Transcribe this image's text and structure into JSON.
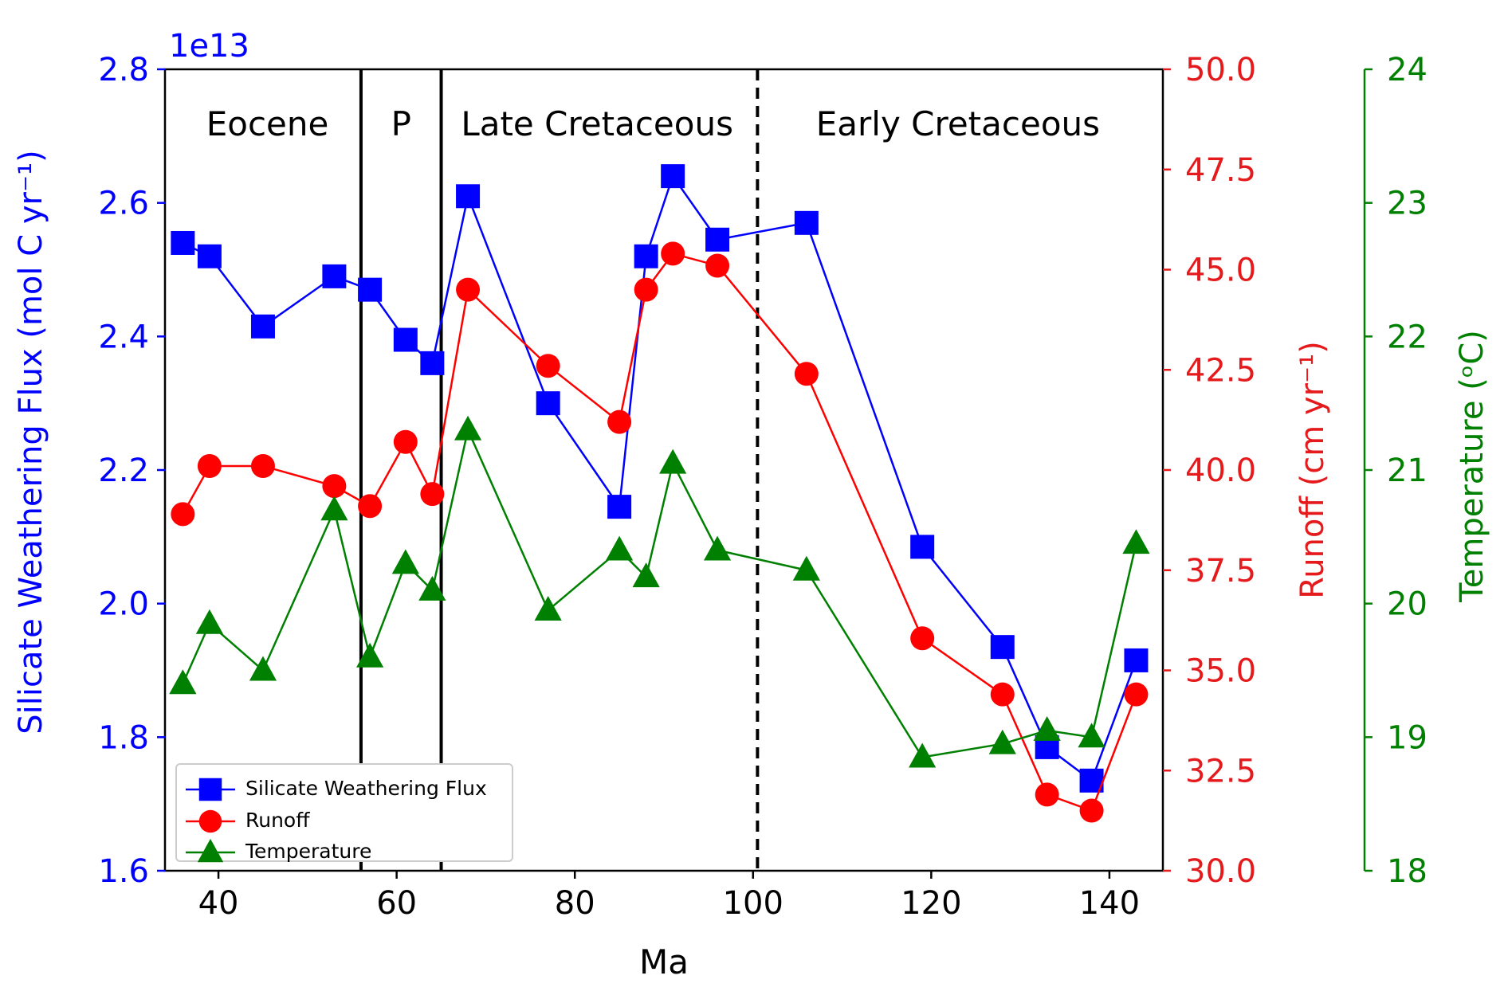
{
  "chart_data": {
    "type": "line",
    "xlabel": "Ma",
    "x_ticks": [
      40,
      60,
      80,
      100,
      120,
      140
    ],
    "xlim": [
      34,
      146
    ],
    "y_offset_label": "1e13",
    "y_axes": [
      {
        "id": "flux",
        "label": "Silicate Weathering Flux (mol C yr⁻¹)",
        "color": "#0000ff",
        "ylim": [
          1.6,
          2.8
        ],
        "ticks": [
          "1.6",
          "1.8",
          "2.0",
          "2.2",
          "2.4",
          "2.6",
          "2.8"
        ]
      },
      {
        "id": "runoff",
        "label": "Runoff (cm yr⁻¹)",
        "color": "#e41a1c",
        "ylim": [
          30.0,
          50.0
        ],
        "ticks": [
          "30.0",
          "32.5",
          "35.0",
          "37.5",
          "40.0",
          "42.5",
          "45.0",
          "47.5",
          "50.0"
        ]
      },
      {
        "id": "temp",
        "label": "Temperature (ᵒC)",
        "color": "#008000",
        "ylim": [
          18,
          24
        ],
        "ticks": [
          "18",
          "19",
          "20",
          "21",
          "22",
          "23",
          "24"
        ]
      }
    ],
    "series": [
      {
        "name": "Silicate Weathering Flux",
        "axis": "flux",
        "marker": "square",
        "color": "#0000ff",
        "x": [
          36,
          39,
          45,
          53,
          57,
          61,
          64,
          68,
          77,
          85,
          88,
          91,
          96,
          106,
          119,
          128,
          133,
          138,
          143
        ],
        "values": [
          2.54,
          2.52,
          2.415,
          2.49,
          2.47,
          2.395,
          2.36,
          2.61,
          2.3,
          2.145,
          2.52,
          2.64,
          2.545,
          2.57,
          2.085,
          1.935,
          1.785,
          1.735,
          1.915
        ]
      },
      {
        "name": "Runoff",
        "axis": "runoff",
        "marker": "circle",
        "color": "#ff0000",
        "x": [
          36,
          39,
          45,
          53,
          57,
          61,
          64,
          68,
          77,
          85,
          88,
          91,
          96,
          106,
          119,
          128,
          133,
          138,
          143
        ],
        "values": [
          38.9,
          40.1,
          40.1,
          39.6,
          39.1,
          40.7,
          39.4,
          44.5,
          42.6,
          41.2,
          44.5,
          45.4,
          45.1,
          42.4,
          35.8,
          34.4,
          31.9,
          31.5,
          34.4
        ]
      },
      {
        "name": "Temperature",
        "axis": "temp",
        "marker": "triangle",
        "color": "#008000",
        "x": [
          36,
          39,
          45,
          53,
          57,
          61,
          64,
          68,
          77,
          85,
          88,
          91,
          96,
          106,
          119,
          128,
          133,
          138,
          143
        ],
        "values": [
          19.4,
          19.85,
          19.5,
          20.7,
          19.6,
          20.3,
          20.1,
          21.3,
          19.95,
          20.4,
          20.2,
          21.05,
          20.4,
          20.25,
          18.85,
          18.95,
          19.05,
          19.0,
          20.45
        ]
      }
    ],
    "vlines": [
      {
        "x": 56,
        "style": "solid"
      },
      {
        "x": 65,
        "style": "solid"
      },
      {
        "x": 100.5,
        "style": "dashed"
      }
    ],
    "annotations": [
      {
        "text": "Eocene",
        "x": 45.5
      },
      {
        "text": "P",
        "x": 60.5
      },
      {
        "text": "Late Cretaceous",
        "x": 82.5
      },
      {
        "text": "Early Cretaceous",
        "x": 123
      }
    ],
    "legend": {
      "position": "lower-left",
      "entries": [
        "Silicate Weathering Flux",
        "Runoff",
        "Temperature"
      ]
    }
  }
}
